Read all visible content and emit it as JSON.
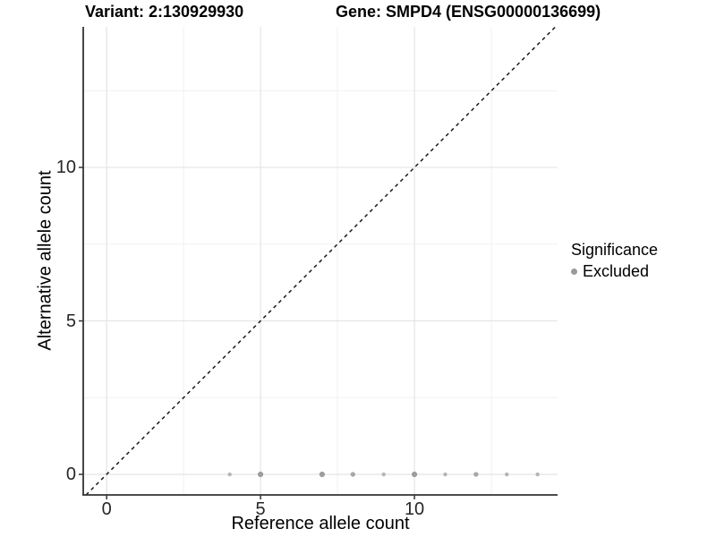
{
  "chart_data": {
    "type": "scatter",
    "title_left": "Variant: 2:130929930",
    "title_right": "Gene: SMPD4 (ENSG00000136699)",
    "xlabel": "Reference allele count",
    "ylabel": "Alternative allele count",
    "xlim": [
      -0.76,
      14.65
    ],
    "ylim": [
      -0.67,
      14.58
    ],
    "x_major_ticks": [
      0,
      5,
      10
    ],
    "x_tick_labels": [
      "0",
      "5",
      "10"
    ],
    "y_major_ticks": [
      0,
      5,
      10
    ],
    "y_tick_labels": [
      "0",
      "5",
      "10"
    ],
    "x_minor_gridlines": [
      2.5,
      7.5,
      12.5
    ],
    "y_minor_gridlines": [
      2.5,
      7.5,
      12.5
    ],
    "grid": "on",
    "identity_line": {
      "style": "dashed",
      "slope": 1,
      "intercept": 0
    },
    "series": [
      {
        "name": "Excluded",
        "points": [
          {
            "x": 4,
            "y": 0,
            "r": 2.2,
            "color": "#b5b5b5"
          },
          {
            "x": 5,
            "y": 0,
            "r": 3.1,
            "color": "#9c9c9c"
          },
          {
            "x": 7,
            "y": 0,
            "r": 3.1,
            "color": "#9c9c9c"
          },
          {
            "x": 8,
            "y": 0,
            "r": 2.7,
            "color": "#a7a7a7"
          },
          {
            "x": 9,
            "y": 0,
            "r": 2.2,
            "color": "#b5b5b5"
          },
          {
            "x": 10,
            "y": 0,
            "r": 3.1,
            "color": "#9c9c9c"
          },
          {
            "x": 11,
            "y": 0,
            "r": 2.2,
            "color": "#b5b5b5"
          },
          {
            "x": 12,
            "y": 0,
            "r": 2.7,
            "color": "#a7a7a7"
          },
          {
            "x": 13,
            "y": 0,
            "r": 2.2,
            "color": "#b5b5b5"
          },
          {
            "x": 14,
            "y": 0,
            "r": 2.2,
            "color": "#b5b5b5"
          }
        ]
      }
    ],
    "legend": {
      "title": "Significance",
      "position": "right",
      "entries": [
        {
          "label": "Excluded",
          "color": "#9b9b9b"
        }
      ]
    },
    "colors": {
      "background": "#ffffff",
      "grid_major": "#e4e4e4",
      "grid_minor": "#f1f1f1",
      "axis_line": "#333333",
      "tick_mark": "#333333",
      "tick_text": "#262626",
      "identity_line": "#1a1a1a",
      "title_text": "#000000"
    }
  }
}
